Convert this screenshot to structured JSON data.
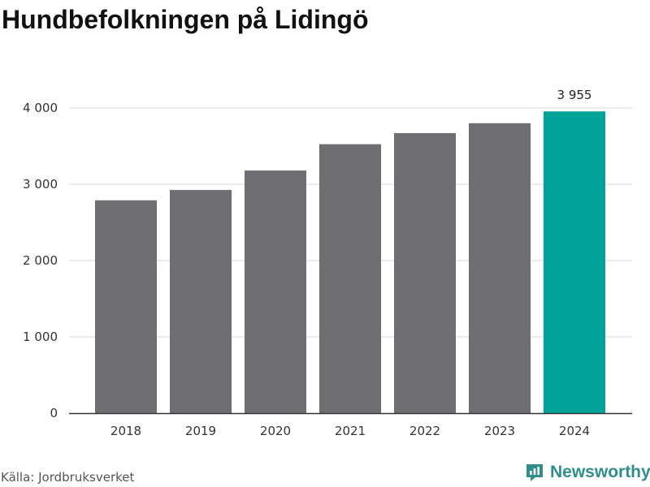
{
  "header": {
    "title": "Hundbefolkningen på Lidingö"
  },
  "footer": {
    "source": "Källa: Jordbruksverket",
    "brand": "Newsworthy"
  },
  "colors": {
    "bar": "#6e6d72",
    "highlight": "#00a39a",
    "grid": "#dddddd",
    "axis": "#333333",
    "brand": "#2f8e8b"
  },
  "icons": {
    "brand_logo": "newsworthy-logo-icon"
  },
  "chart_data": {
    "type": "bar",
    "title": "Hundbefolkningen på Lidingö",
    "xlabel": "",
    "ylabel": "",
    "categories": [
      "2018",
      "2019",
      "2020",
      "2021",
      "2022",
      "2023",
      "2024"
    ],
    "values": [
      2790,
      2925,
      3180,
      3525,
      3670,
      3800,
      3955
    ],
    "ylim": [
      0,
      4000
    ],
    "yticks": [
      0,
      1000,
      2000,
      3000,
      4000
    ],
    "ytick_labels": [
      "0",
      "1 000",
      "2 000",
      "3 000",
      "4 000"
    ],
    "highlight_index": 6,
    "data_labels": [
      "",
      "",
      "",
      "",
      "",
      "",
      "3 955"
    ],
    "grid": true,
    "legend": "none"
  }
}
